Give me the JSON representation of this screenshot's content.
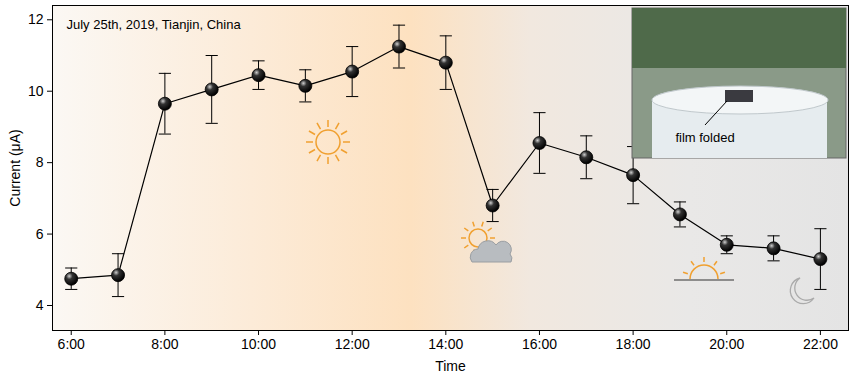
{
  "chart_data": {
    "type": "line",
    "x_label": "Time",
    "y_label": "Current (μA)",
    "annotations": [
      "July 25th, 2019, Tianjin, China",
      "film folded"
    ],
    "x": [
      6,
      7,
      8,
      9,
      10,
      11,
      12,
      13,
      14,
      15,
      16,
      17,
      18,
      19,
      20,
      21,
      22
    ],
    "series": [
      {
        "name": "Current",
        "color": "#000000",
        "marker": "circle",
        "values": [
          4.75,
          4.85,
          9.65,
          10.05,
          10.45,
          10.15,
          10.55,
          11.25,
          10.8,
          6.8,
          8.55,
          8.15,
          7.65,
          6.55,
          5.7,
          5.6,
          5.3
        ],
        "error": [
          0.3,
          0.6,
          0.85,
          0.95,
          0.4,
          0.45,
          0.7,
          0.6,
          0.75,
          0.45,
          0.85,
          0.6,
          0.8,
          0.35,
          0.25,
          0.35,
          0.85
        ]
      }
    ],
    "xlim": [
      5.6,
      22.6
    ],
    "xticks": [
      {
        "value": 6,
        "label": "6:00"
      },
      {
        "value": 8,
        "label": "8:00"
      },
      {
        "value": 10,
        "label": "10:00"
      },
      {
        "value": 12,
        "label": "12:00"
      },
      {
        "value": 14,
        "label": "14:00"
      },
      {
        "value": 16,
        "label": "16:00"
      },
      {
        "value": 18,
        "label": "18:00"
      },
      {
        "value": 20,
        "label": "20:00"
      },
      {
        "value": 22,
        "label": "22:00"
      }
    ],
    "ylim": [
      3.3,
      12.4
    ],
    "yticks": [
      4,
      6,
      8,
      10,
      12
    ],
    "grid": false
  }
}
